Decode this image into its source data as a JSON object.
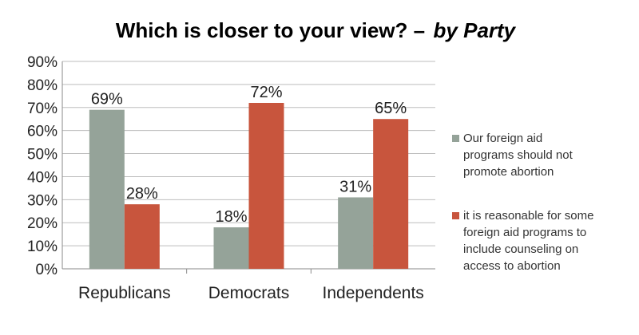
{
  "chart_data": {
    "type": "bar",
    "title": "Which is closer to your view? –",
    "subtitle": "by Party",
    "categories": [
      "Republicans",
      "Democrats",
      "Independents"
    ],
    "series": [
      {
        "name": "Our foreign aid programs should not promote abortion",
        "legend_lines": [
          "Our foreign aid",
          "programs should not",
          "promote abortion"
        ],
        "color": "#95a399",
        "values": [
          69,
          18,
          31
        ],
        "labels": [
          "69%",
          "18%",
          "31%"
        ]
      },
      {
        "name": "it is reasonable for some foreign aid programs to include counseling on access to abortion",
        "legend_lines": [
          "it is reasonable for some",
          "foreign aid programs to",
          "include counseling on",
          "access to abortion"
        ],
        "color": "#c8553d",
        "values": [
          28,
          72,
          65
        ],
        "labels": [
          "28%",
          "72%",
          "65%"
        ]
      }
    ],
    "ylim": [
      0,
      90
    ],
    "yticks": [
      "0%",
      "10%",
      "20%",
      "30%",
      "40%",
      "50%",
      "60%",
      "70%",
      "80%",
      "90%"
    ],
    "grid": true,
    "legend_position": "right"
  }
}
